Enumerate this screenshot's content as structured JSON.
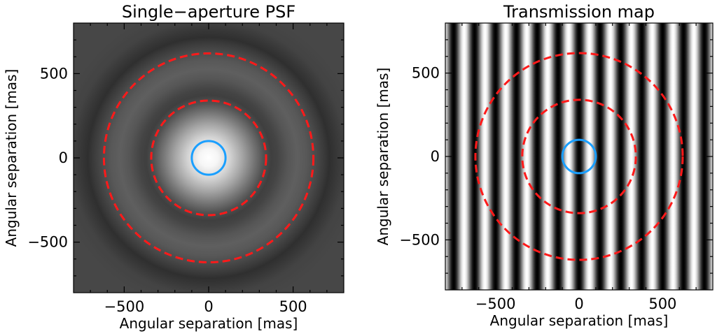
{
  "chart_data": [
    {
      "type": "heatmap",
      "title": "Single−aperture PSF",
      "xlabel": "Angular separation [mas]",
      "ylabel": "Angular separation [mas]",
      "xlim": [
        -800,
        800
      ],
      "ylim": [
        -800,
        800
      ],
      "xticks": [
        {
          "value": -500,
          "label": "−500"
        },
        {
          "value": 0,
          "label": "0"
        },
        {
          "value": 500,
          "label": "500"
        }
      ],
      "yticks": [
        {
          "value": -500,
          "label": "−500"
        },
        {
          "value": 0,
          "label": "0"
        },
        {
          "value": 500,
          "label": "500"
        }
      ],
      "map": "airy_pattern",
      "grid": false,
      "overlays": [
        {
          "kind": "circle",
          "center": [
            0,
            0
          ],
          "radius": 100,
          "color": "#1a9fff",
          "style": "solid"
        },
        {
          "kind": "circle",
          "center": [
            0,
            0
          ],
          "radius": 340,
          "color": "#ff1a1a",
          "style": "dashed"
        },
        {
          "kind": "circle",
          "center": [
            0,
            0
          ],
          "radius": 620,
          "color": "#ff1a1a",
          "style": "dashed"
        }
      ]
    },
    {
      "type": "heatmap",
      "title": "Transmission map",
      "xlabel": "Angular separation [mas]",
      "ylabel": "Angular separation [mas]",
      "xlim": [
        -800,
        800
      ],
      "ylim": [
        -800,
        800
      ],
      "xticks": [
        {
          "value": -500,
          "label": "−500"
        },
        {
          "value": 0,
          "label": "0"
        },
        {
          "value": 500,
          "label": "500"
        }
      ],
      "yticks": [
        {
          "value": -500,
          "label": "−500"
        },
        {
          "value": 0,
          "label": "0"
        },
        {
          "value": 500,
          "label": "500"
        }
      ],
      "map": "vertical_fringes",
      "fringe_period": 125,
      "fringe_dark_at_x": 0,
      "grid": false,
      "overlays": [
        {
          "kind": "circle",
          "center": [
            0,
            0
          ],
          "radius": 100,
          "color": "#1a9fff",
          "style": "solid"
        },
        {
          "kind": "circle",
          "center": [
            0,
            0
          ],
          "radius": 340,
          "color": "#ff1a1a",
          "style": "dashed"
        },
        {
          "kind": "circle",
          "center": [
            0,
            0
          ],
          "radius": 620,
          "color": "#ff1a1a",
          "style": "dashed"
        }
      ]
    }
  ]
}
